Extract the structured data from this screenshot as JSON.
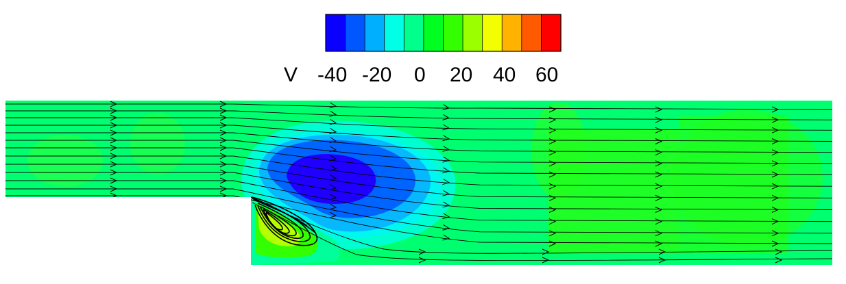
{
  "colorbar": {
    "variable": "V",
    "tick_labels": [
      "-40",
      "-20",
      "0",
      "20",
      "40",
      "60"
    ],
    "colors": [
      "#0a00ff",
      "#0057ff",
      "#00b0ff",
      "#00ffe6",
      "#00ff8c",
      "#00ff20",
      "#34ff00",
      "#9cff00",
      "#f3ff00",
      "#ffb300",
      "#ff5a00",
      "#ff0000"
    ]
  },
  "field": {
    "background_color": "#00ff70",
    "streamline_color": "#000000"
  }
}
